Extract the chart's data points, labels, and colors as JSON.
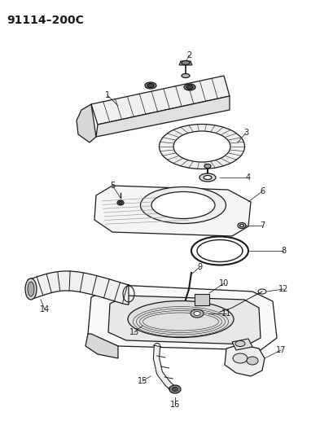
{
  "title": "91114–200C",
  "bg_color": "#ffffff",
  "lc": "#1a1a1a",
  "title_fontsize": 10,
  "label_fontsize": 7,
  "lw": 0.9
}
